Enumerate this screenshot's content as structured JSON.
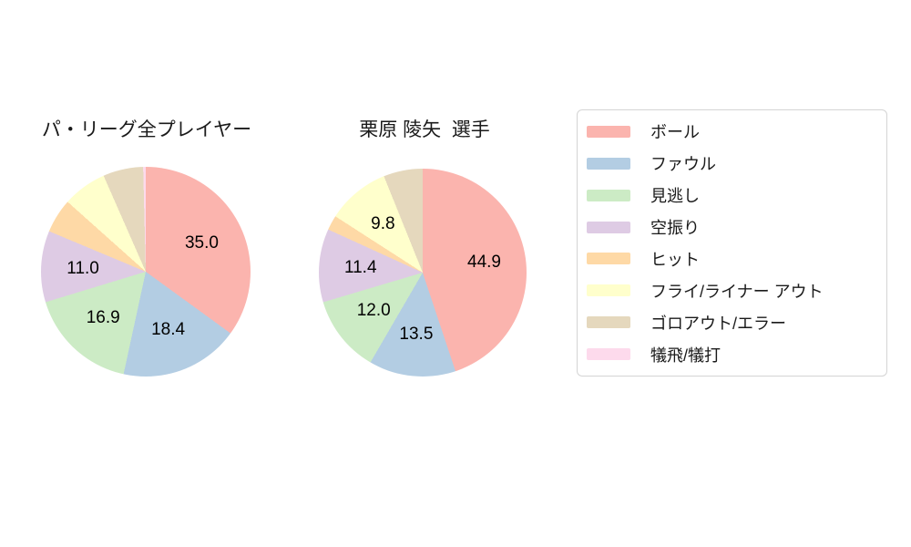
{
  "chart_data": {
    "type": "pie",
    "legend_position": "right",
    "grid": false,
    "autopct_format": "one_decimal",
    "autopct_threshold": 9.0,
    "legend": {
      "entries": [
        {
          "label": "ボール",
          "color": "#fbb4ae"
        },
        {
          "label": "ファウル",
          "color": "#b3cde3"
        },
        {
          "label": "見逃し",
          "color": "#ccebc5"
        },
        {
          "label": "空振り",
          "color": "#decbe4"
        },
        {
          "label": "ヒット",
          "color": "#fed9a6"
        },
        {
          "label": "フライ/ライナー アウト",
          "color": "#ffffcc"
        },
        {
          "label": "ゴロアウト/エラー",
          "color": "#e5d8bd"
        },
        {
          "label": "犠飛/犠打",
          "color": "#fddaec"
        }
      ]
    },
    "categories": [
      "ボール",
      "ファウル",
      "見逃し",
      "空振り",
      "ヒット",
      "フライ/ライナー アウト",
      "ゴロアウト/エラー",
      "犠飛/犠打"
    ],
    "colors": [
      "#fbb4ae",
      "#b3cde3",
      "#ccebc5",
      "#decbe4",
      "#fed9a6",
      "#ffffcc",
      "#e5d8bd",
      "#fddaec"
    ],
    "pies": [
      {
        "title": "パ・リーグ全プレイヤー",
        "start_angle_deg": 0,
        "direction": "clockwise",
        "values": [
          35.0,
          18.4,
          16.9,
          11.0,
          5.3,
          6.8,
          6.2,
          0.4
        ],
        "visible_value_labels": [
          "35.0",
          "18.4",
          "16.9",
          "11.0"
        ]
      },
      {
        "title": "栗原 陵矢  選手",
        "start_angle_deg": 0,
        "direction": "clockwise",
        "values": [
          44.9,
          13.5,
          12.0,
          11.4,
          2.3,
          9.8,
          6.1,
          0.0
        ],
        "visible_value_labels": [
          "44.9",
          "13.5",
          "12.0",
          "11.4",
          "9.8"
        ]
      }
    ]
  }
}
